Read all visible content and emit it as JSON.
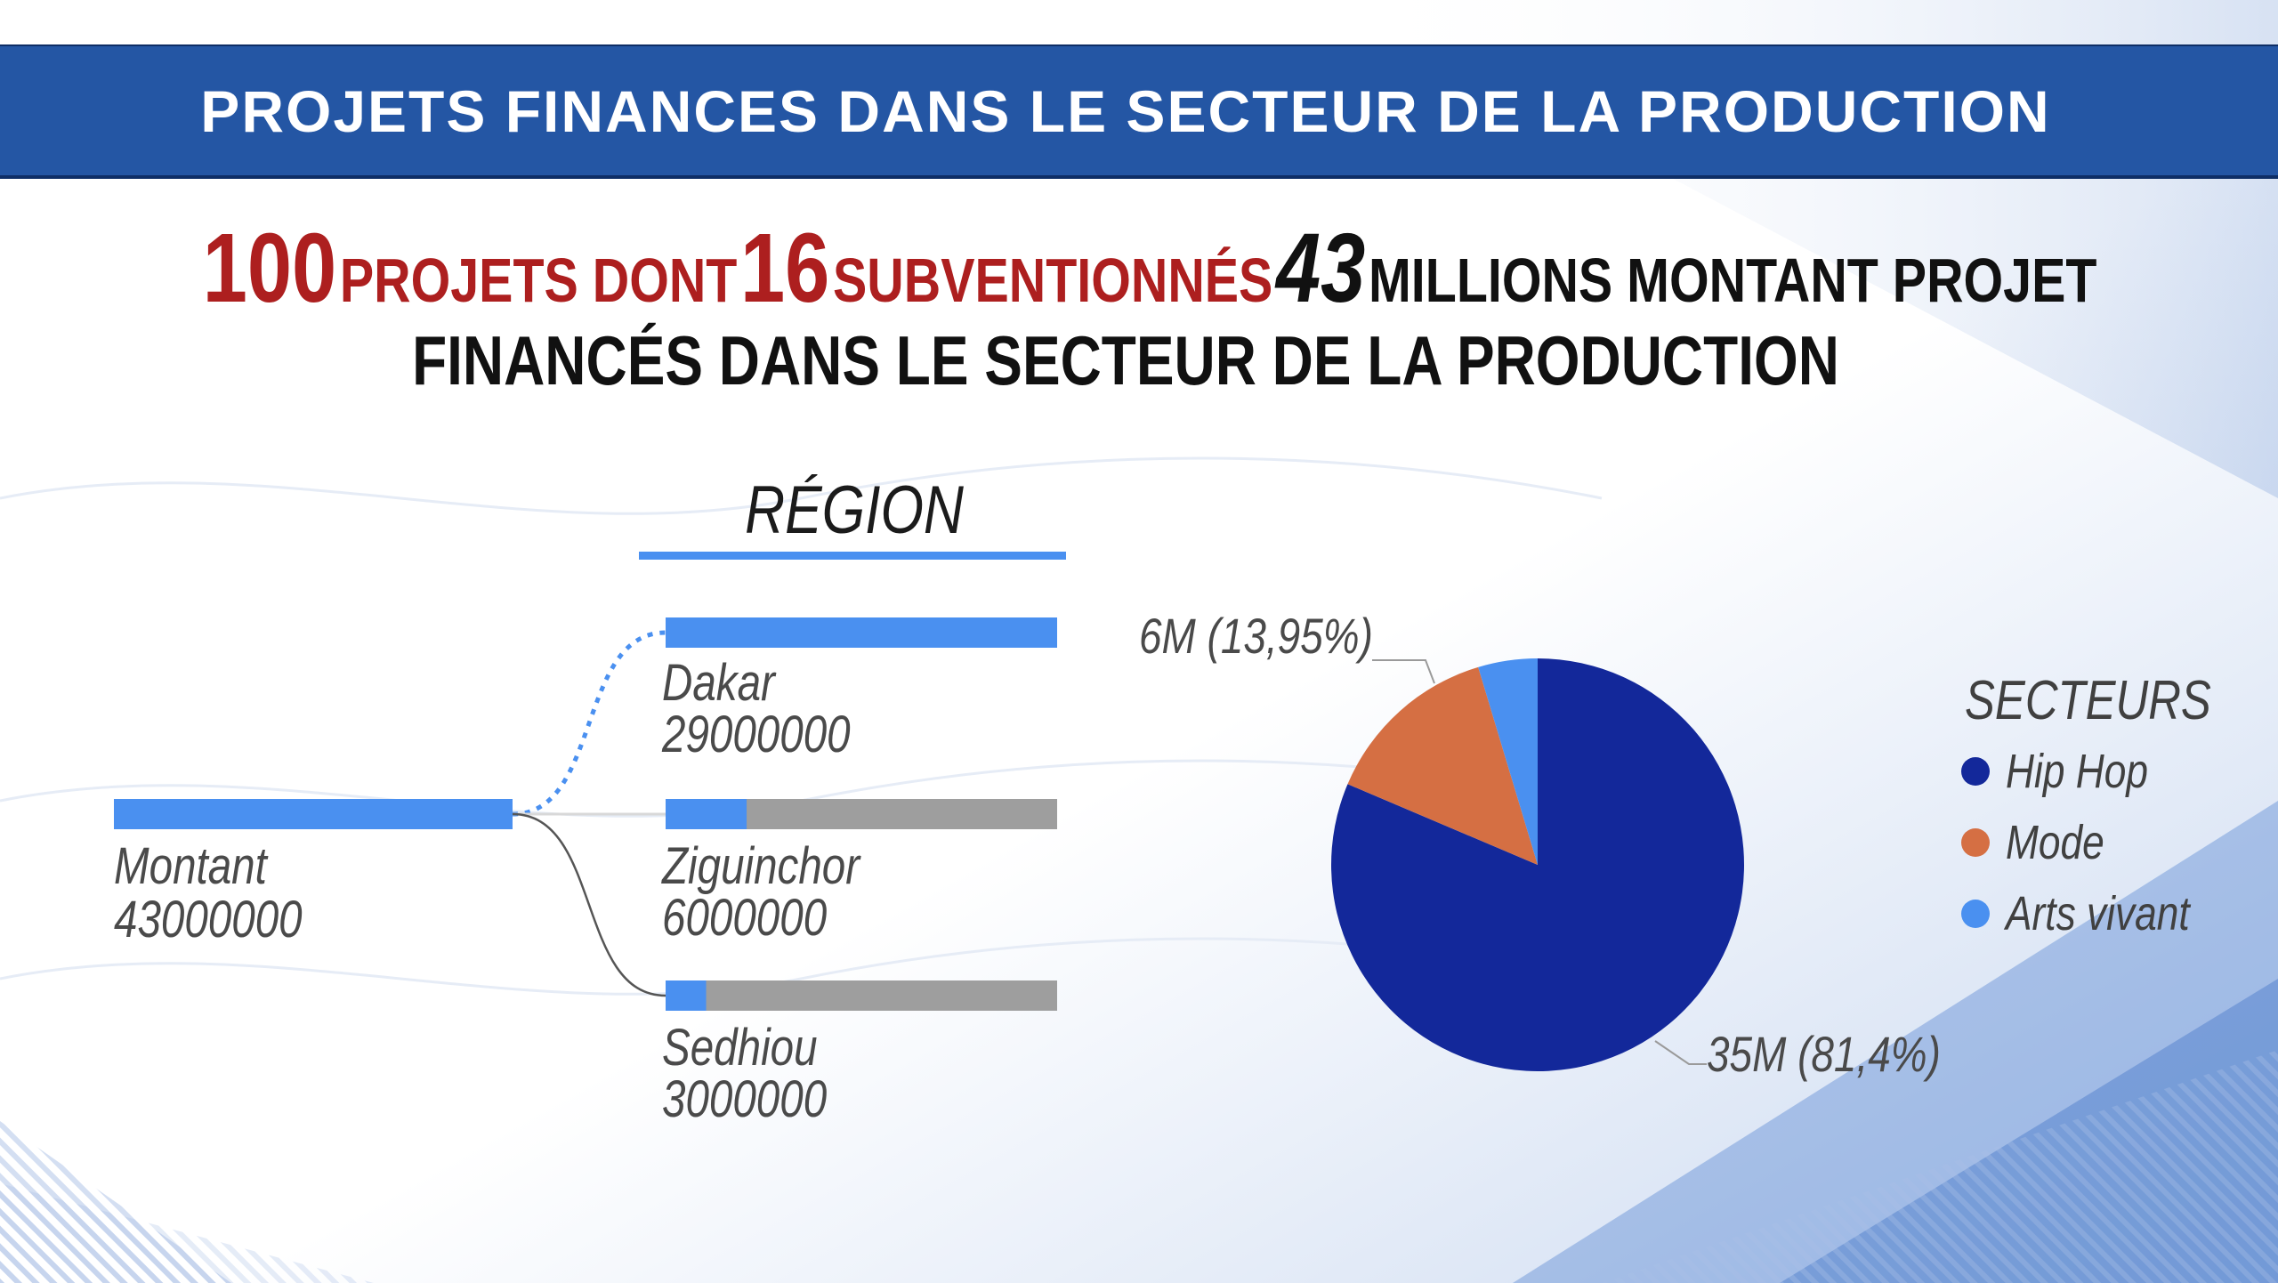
{
  "banner": {
    "title": "PROJETS FINANCES DANS LE SECTEUR DE LA PRODUCTION"
  },
  "headline": {
    "projects_count": "100",
    "projects_label": "PROJETS DONT",
    "subsidized_count": "16",
    "subsidized_label": "SUBVENTIONNÉS",
    "amount": "43",
    "amount_label": "MILLIONS MONTANT PROJET",
    "line2": "FINANCÉS DANS LE SECTEUR DE LA PRODUCTION"
  },
  "colors": {
    "banner_blue": "#2456a4",
    "bar_blue": "#4a90f0",
    "bar_grey": "#9e9e9e",
    "hip_hop": "#13289a",
    "mode": "#d56f43",
    "arts_vivant": "#4a90f0",
    "headline_red": "#ad1f1f"
  },
  "chart_data": [
    {
      "type": "bar",
      "title": "RÉGION",
      "root": {
        "label": "Montant",
        "value": 43000000
      },
      "categories": [
        "Dakar",
        "Ziguinchor",
        "Sedhiou"
      ],
      "values": [
        29000000,
        6000000,
        3000000
      ],
      "value_labels": [
        "29000000",
        "6000000",
        "3000000"
      ],
      "root_value_label": "43000000",
      "bar_max": 29000000,
      "highlighted": "Dakar"
    },
    {
      "type": "pie",
      "title": "SECTEURS",
      "categories": [
        "Hip Hop",
        "Mode",
        "Arts vivant"
      ],
      "values": [
        35,
        6,
        2
      ],
      "unit": "M",
      "data_labels": [
        "35M (81,4%)",
        "6M (13,95%)",
        ""
      ],
      "legend_position": "right"
    }
  ]
}
